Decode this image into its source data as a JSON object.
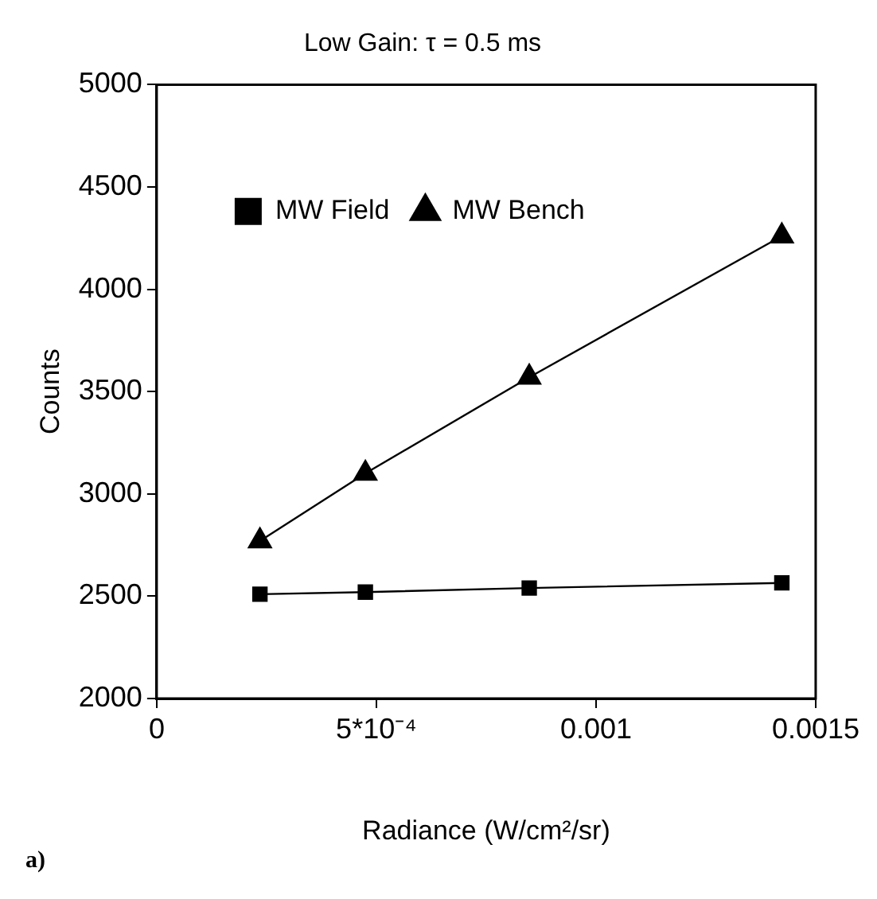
{
  "chart_data": {
    "type": "line",
    "title": "Low Gain: τ = 0.5 ms",
    "xlabel": "Radiance (W/cm²/sr)",
    "ylabel": "Counts",
    "annotations": [
      "a)"
    ],
    "x": [
      0.000235,
      0.000475,
      0.000848,
      0.001423
    ],
    "series": [
      {
        "name": "MW Field",
        "color": "#000000",
        "marker": "square",
        "values": [
          2510,
          2520,
          2540,
          2565
        ]
      },
      {
        "name": "MW Bench",
        "color": "#000000",
        "marker": "triangle",
        "values": [
          2770,
          3100,
          3570,
          4260
        ]
      }
    ],
    "xlim": [
      0,
      0.0015
    ],
    "xticks": [
      0,
      {
        "value": 0.0005,
        "label": "5*10⁻⁴"
      },
      0.001,
      0.0015
    ],
    "ylim": [
      2000,
      5000
    ],
    "yticks": [
      2000,
      2500,
      3000,
      3500,
      4000,
      4500,
      5000
    ],
    "grid": false,
    "legend": "top left"
  }
}
